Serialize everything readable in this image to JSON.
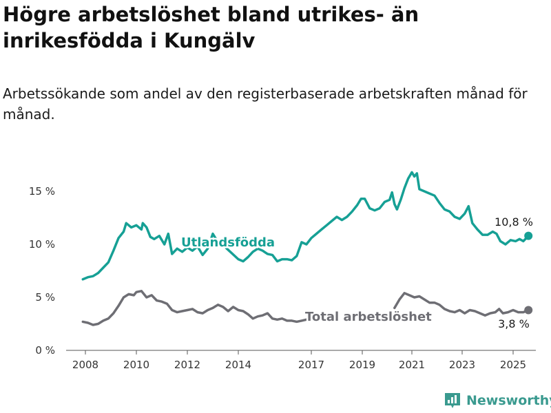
{
  "header": {
    "title": "Högre arbetslöshet bland utrikes- än inrikesfödda i Kungälv",
    "subtitle": "Arbetssökande som andel av den registerbaserade arbetskraften månad för månad."
  },
  "brand": {
    "name": "Newsworthy",
    "icon": "newsworthy-logo-icon",
    "color": "#3a9a8f"
  },
  "chart_data": {
    "type": "line",
    "x_ticks": [
      "2008",
      "2010",
      "2012",
      "2014",
      "2017",
      "2019",
      "2021",
      "2023",
      "2025"
    ],
    "y_ticks": [
      "0 %",
      "5 %",
      "10 %",
      "15 %"
    ],
    "ylim": [
      0,
      18
    ],
    "grid": false,
    "series": [
      {
        "name": "Utlandsfödda",
        "color": "#16a095",
        "end_label": "10,8 %",
        "points": [
          [
            2007.9,
            6.7
          ],
          [
            2008.1,
            6.9
          ],
          [
            2008.3,
            7.0
          ],
          [
            2008.5,
            7.3
          ],
          [
            2008.7,
            7.8
          ],
          [
            2008.9,
            8.3
          ],
          [
            2009.1,
            9.4
          ],
          [
            2009.3,
            10.6
          ],
          [
            2009.5,
            11.2
          ],
          [
            2009.6,
            12.0
          ],
          [
            2009.8,
            11.6
          ],
          [
            2010.0,
            11.8
          ],
          [
            2010.2,
            11.4
          ],
          [
            2010.25,
            12.0
          ],
          [
            2010.4,
            11.6
          ],
          [
            2010.55,
            10.7
          ],
          [
            2010.7,
            10.5
          ],
          [
            2010.9,
            10.8
          ],
          [
            2011.1,
            10.0
          ],
          [
            2011.25,
            11.0
          ],
          [
            2011.4,
            9.1
          ],
          [
            2011.6,
            9.6
          ],
          [
            2011.8,
            9.3
          ],
          [
            2012.0,
            9.7
          ],
          [
            2012.2,
            9.4
          ],
          [
            2012.4,
            9.8
          ],
          [
            2012.6,
            9.0
          ],
          [
            2012.8,
            9.6
          ],
          [
            2013.0,
            11.0
          ],
          [
            2013.2,
            10.2
          ],
          [
            2013.4,
            10.0
          ],
          [
            2013.55,
            9.6
          ],
          [
            2014.0,
            8.6
          ],
          [
            2014.2,
            8.4
          ],
          [
            2014.4,
            8.8
          ],
          [
            2014.6,
            9.3
          ],
          [
            2014.8,
            9.6
          ],
          [
            2015.0,
            9.4
          ],
          [
            2015.2,
            9.1
          ],
          [
            2015.4,
            9.0
          ],
          [
            2015.6,
            8.4
          ],
          [
            2015.8,
            8.6
          ],
          [
            2016.0,
            8.6
          ],
          [
            2016.2,
            8.5
          ],
          [
            2016.4,
            8.9
          ],
          [
            2016.6,
            10.2
          ],
          [
            2016.8,
            10.0
          ],
          [
            2017.0,
            10.6
          ],
          [
            2017.2,
            11.0
          ],
          [
            2017.4,
            11.4
          ],
          [
            2017.6,
            11.8
          ],
          [
            2017.8,
            12.2
          ],
          [
            2018.0,
            12.6
          ],
          [
            2018.2,
            12.3
          ],
          [
            2018.4,
            12.6
          ],
          [
            2018.6,
            13.1
          ],
          [
            2018.8,
            13.7
          ],
          [
            2018.95,
            14.3
          ],
          [
            2019.1,
            14.3
          ],
          [
            2019.3,
            13.4
          ],
          [
            2019.5,
            13.2
          ],
          [
            2019.7,
            13.4
          ],
          [
            2019.9,
            14.0
          ],
          [
            2020.1,
            14.2
          ],
          [
            2020.2,
            14.9
          ],
          [
            2020.3,
            13.8
          ],
          [
            2020.4,
            13.3
          ],
          [
            2020.55,
            14.2
          ],
          [
            2020.7,
            15.3
          ],
          [
            2020.85,
            16.2
          ],
          [
            2021.0,
            16.8
          ],
          [
            2021.1,
            16.4
          ],
          [
            2021.2,
            16.7
          ],
          [
            2021.3,
            15.2
          ],
          [
            2021.5,
            15.0
          ],
          [
            2021.7,
            14.8
          ],
          [
            2021.9,
            14.6
          ],
          [
            2022.1,
            13.9
          ],
          [
            2022.3,
            13.3
          ],
          [
            2022.5,
            13.1
          ],
          [
            2022.7,
            12.6
          ],
          [
            2022.9,
            12.4
          ],
          [
            2023.1,
            12.9
          ],
          [
            2023.25,
            13.6
          ],
          [
            2023.4,
            12.0
          ],
          [
            2023.6,
            11.4
          ],
          [
            2023.8,
            10.9
          ],
          [
            2024.0,
            10.9
          ],
          [
            2024.2,
            11.2
          ],
          [
            2024.35,
            11.0
          ],
          [
            2024.5,
            10.3
          ],
          [
            2024.7,
            10.0
          ],
          [
            2024.9,
            10.4
          ],
          [
            2025.1,
            10.3
          ],
          [
            2025.25,
            10.5
          ],
          [
            2025.4,
            10.3
          ],
          [
            2025.6,
            10.8
          ]
        ]
      },
      {
        "name": "Total arbetslöshet",
        "color": "#6e6e74",
        "end_label": "3,8 %",
        "points": [
          [
            2007.9,
            2.7
          ],
          [
            2008.1,
            2.6
          ],
          [
            2008.3,
            2.4
          ],
          [
            2008.5,
            2.5
          ],
          [
            2008.7,
            2.8
          ],
          [
            2008.9,
            3.0
          ],
          [
            2009.1,
            3.5
          ],
          [
            2009.3,
            4.2
          ],
          [
            2009.5,
            5.0
          ],
          [
            2009.7,
            5.3
          ],
          [
            2009.9,
            5.2
          ],
          [
            2010.0,
            5.5
          ],
          [
            2010.2,
            5.6
          ],
          [
            2010.4,
            5.0
          ],
          [
            2010.6,
            5.2
          ],
          [
            2010.8,
            4.7
          ],
          [
            2011.0,
            4.6
          ],
          [
            2011.2,
            4.4
          ],
          [
            2011.4,
            3.8
          ],
          [
            2011.6,
            3.6
          ],
          [
            2011.8,
            3.7
          ],
          [
            2012.0,
            3.8
          ],
          [
            2012.2,
            3.9
          ],
          [
            2012.4,
            3.6
          ],
          [
            2012.6,
            3.5
          ],
          [
            2012.8,
            3.8
          ],
          [
            2013.0,
            4.0
          ],
          [
            2013.2,
            4.3
          ],
          [
            2013.4,
            4.1
          ],
          [
            2013.6,
            3.7
          ],
          [
            2013.8,
            4.1
          ],
          [
            2014.0,
            3.8
          ],
          [
            2014.2,
            3.7
          ],
          [
            2014.4,
            3.4
          ],
          [
            2014.6,
            3.0
          ],
          [
            2014.8,
            3.2
          ],
          [
            2015.0,
            3.3
          ],
          [
            2015.2,
            3.5
          ],
          [
            2015.4,
            3.0
          ],
          [
            2015.6,
            2.9
          ],
          [
            2015.8,
            3.0
          ],
          [
            2016.0,
            2.8
          ],
          [
            2016.2,
            2.8
          ],
          [
            2016.4,
            2.7
          ],
          [
            2016.6,
            2.8
          ],
          [
            2016.8,
            2.9
          ],
          [
            2020.3,
            4.0
          ],
          [
            2020.5,
            4.8
          ],
          [
            2020.7,
            5.4
          ],
          [
            2020.9,
            5.2
          ],
          [
            2021.1,
            5.0
          ],
          [
            2021.3,
            5.1
          ],
          [
            2021.5,
            4.8
          ],
          [
            2021.7,
            4.5
          ],
          [
            2021.9,
            4.5
          ],
          [
            2022.1,
            4.3
          ],
          [
            2022.3,
            3.9
          ],
          [
            2022.5,
            3.7
          ],
          [
            2022.7,
            3.6
          ],
          [
            2022.9,
            3.8
          ],
          [
            2023.1,
            3.5
          ],
          [
            2023.3,
            3.8
          ],
          [
            2023.5,
            3.7
          ],
          [
            2023.7,
            3.5
          ],
          [
            2023.9,
            3.3
          ],
          [
            2024.1,
            3.5
          ],
          [
            2024.3,
            3.6
          ],
          [
            2024.45,
            3.9
          ],
          [
            2024.6,
            3.5
          ],
          [
            2024.8,
            3.6
          ],
          [
            2025.0,
            3.8
          ],
          [
            2025.2,
            3.6
          ],
          [
            2025.4,
            3.6
          ],
          [
            2025.6,
            3.8
          ]
        ]
      }
    ]
  }
}
